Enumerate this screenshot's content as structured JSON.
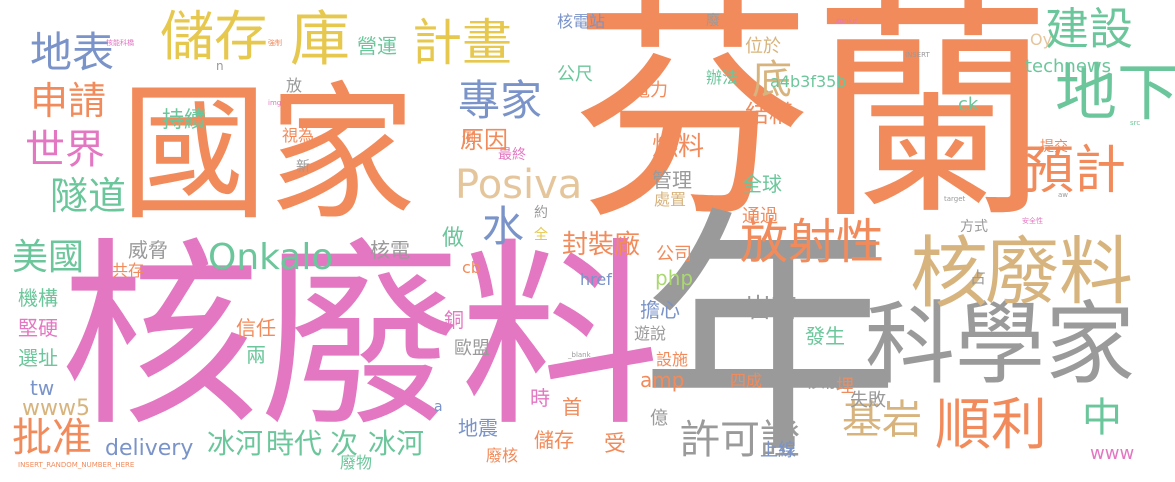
{
  "palette": {
    "orange": "#f28b5b",
    "pink": "#e377c2",
    "gray": "#9a9a9a",
    "tan": "#d7b47d",
    "green": "#6cc69b",
    "blue": "#7a93c8",
    "yellow": "#e6c84e",
    "lightgreen": "#a9d86f",
    "beige": "#e5c69c"
  },
  "words": [
    {
      "text": "芬蘭",
      "color": "orange"
    },
    {
      "text": "國家",
      "color": "orange"
    },
    {
      "text": "核廢料",
      "color": "pink"
    },
    {
      "text": "年",
      "color": "gray"
    },
    {
      "text": "科學家",
      "color": "gray"
    },
    {
      "text": "核",
      "color": "tan"
    },
    {
      "text": "廢料",
      "color": "tan"
    },
    {
      "text": "儲存",
      "color": "yellow"
    },
    {
      "text": "庫",
      "color": "yellow"
    },
    {
      "text": "計畫",
      "color": "yellow"
    },
    {
      "text": "地表",
      "color": "blue"
    },
    {
      "text": "建設",
      "color": "green"
    },
    {
      "text": "地下",
      "color": "green"
    },
    {
      "text": "申請",
      "color": "orange"
    },
    {
      "text": "世界",
      "color": "pink"
    },
    {
      "text": "隧道",
      "color": "green"
    },
    {
      "text": "專家",
      "color": "blue"
    },
    {
      "text": "底",
      "color": "tan"
    },
    {
      "text": "Posiva",
      "color": "beige"
    },
    {
      "text": "預計",
      "color": "orange"
    },
    {
      "text": "放射性",
      "color": "orange"
    },
    {
      "text": "Onkalo",
      "color": "green"
    },
    {
      "text": "水",
      "color": "blue"
    },
    {
      "text": "美國",
      "color": "green"
    },
    {
      "text": "順利",
      "color": "orange"
    },
    {
      "text": "中",
      "color": "green"
    },
    {
      "text": "基岩",
      "color": "tan"
    },
    {
      "text": "許可證",
      "color": "gray"
    },
    {
      "text": "批准",
      "color": "orange"
    },
    {
      "text": "冰河",
      "color": "green"
    },
    {
      "text": "時代",
      "color": "green"
    },
    {
      "text": "次",
      "color": "green"
    },
    {
      "text": "冰河",
      "color": "green"
    },
    {
      "text": "delivery",
      "color": "blue"
    },
    {
      "text": "www5",
      "color": "tan"
    },
    {
      "text": "封裝廠",
      "color": "orange"
    },
    {
      "text": "燃料",
      "color": "orange"
    },
    {
      "text": "結構",
      "color": "orange"
    },
    {
      "text": "原因",
      "color": "orange"
    },
    {
      "text": "管理",
      "color": "gray"
    },
    {
      "text": "全球",
      "color": "green"
    },
    {
      "text": "營運",
      "color": "green"
    },
    {
      "text": "公尺",
      "color": "green"
    },
    {
      "text": "technews",
      "color": "green"
    },
    {
      "text": "a4b3f35b",
      "color": "green"
    },
    {
      "text": "位於",
      "color": "tan"
    },
    {
      "text": "辦法",
      "color": "green"
    },
    {
      "text": "電力",
      "color": "orange"
    },
    {
      "text": "核電站",
      "color": "blue"
    },
    {
      "text": "持續",
      "color": "green"
    },
    {
      "text": "機構",
      "color": "green"
    },
    {
      "text": "堅硬",
      "color": "pink"
    },
    {
      "text": "選址",
      "color": "green"
    },
    {
      "text": "威脅",
      "color": "gray"
    },
    {
      "text": "信任",
      "color": "orange"
    },
    {
      "text": "核電",
      "color": "gray"
    },
    {
      "text": "公司",
      "color": "orange"
    },
    {
      "text": "php",
      "color": "lightgreen"
    },
    {
      "text": "擔心",
      "color": "blue"
    },
    {
      "text": "岩石",
      "color": "gray"
    },
    {
      "text": "發生",
      "color": "green"
    },
    {
      "text": "核能",
      "color": "gray"
    },
    {
      "text": "地震",
      "color": "blue"
    },
    {
      "text": "儲存",
      "color": "orange"
    },
    {
      "text": "上線",
      "color": "blue"
    },
    {
      "text": "www",
      "color": "pink"
    },
    {
      "text": "amp",
      "color": "orange"
    },
    {
      "text": "失敗",
      "color": "gray"
    },
    {
      "text": "四成",
      "color": "orange"
    },
    {
      "text": "歐盟",
      "color": "gray"
    },
    {
      "text": "廢物",
      "color": "green"
    },
    {
      "text": "受",
      "color": "orange"
    },
    {
      "text": "億",
      "color": "gray"
    },
    {
      "text": "首",
      "color": "orange"
    },
    {
      "text": "時",
      "color": "pink"
    },
    {
      "text": "做",
      "color": "green"
    },
    {
      "text": "約",
      "color": "gray"
    },
    {
      "text": "共存",
      "color": "orange"
    },
    {
      "text": "兩",
      "color": "green"
    },
    {
      "text": "tw",
      "color": "blue"
    },
    {
      "text": "ck",
      "color": "green"
    },
    {
      "text": "Oy",
      "color": "beige"
    },
    {
      "text": "href",
      "color": "blue"
    },
    {
      "text": "方式",
      "color": "gray"
    },
    {
      "text": "視為",
      "color": "orange"
    },
    {
      "text": "新",
      "color": "gray"
    },
    {
      "text": "例",
      "color": "orange"
    },
    {
      "text": "最終",
      "color": "pink"
    },
    {
      "text": "提交",
      "color": "orange"
    },
    {
      "text": "遊說",
      "color": "gray"
    },
    {
      "text": "設施",
      "color": "orange"
    },
    {
      "text": "處置",
      "color": "tan"
    },
    {
      "text": "通過",
      "color": "orange"
    },
    {
      "text": "銅",
      "color": "pink"
    },
    {
      "text": "cb",
      "color": "orange"
    },
    {
      "text": "放",
      "color": "gray"
    },
    {
      "text": "埋",
      "color": "orange"
    },
    {
      "text": "占",
      "color": "gray"
    },
    {
      "text": "廢核",
      "color": "orange"
    },
    {
      "text": "全",
      "color": "yellow"
    },
    {
      "text": "a",
      "color": "blue"
    },
    {
      "text": "n",
      "color": "gray"
    },
    {
      "text": "廢",
      "color": "gray"
    },
    {
      "text": "INSERT_RANDOM_NUMBER_HERE",
      "color": "orange"
    },
    {
      "text": "_blank",
      "color": "gray"
    },
    {
      "text": "target",
      "color": "gray"
    },
    {
      "text": "INSERT",
      "color": "gray"
    },
    {
      "text": "img",
      "color": "pink"
    },
    {
      "text": "src",
      "color": "green"
    },
    {
      "text": "aw",
      "color": "gray"
    },
    {
      "text": "zonkd",
      "color": "pink"
    },
    {
      "text": "安全性",
      "color": "pink"
    },
    {
      "text": "強制",
      "color": "orange"
    },
    {
      "text": "核能科橋",
      "color": "pink"
    }
  ]
}
